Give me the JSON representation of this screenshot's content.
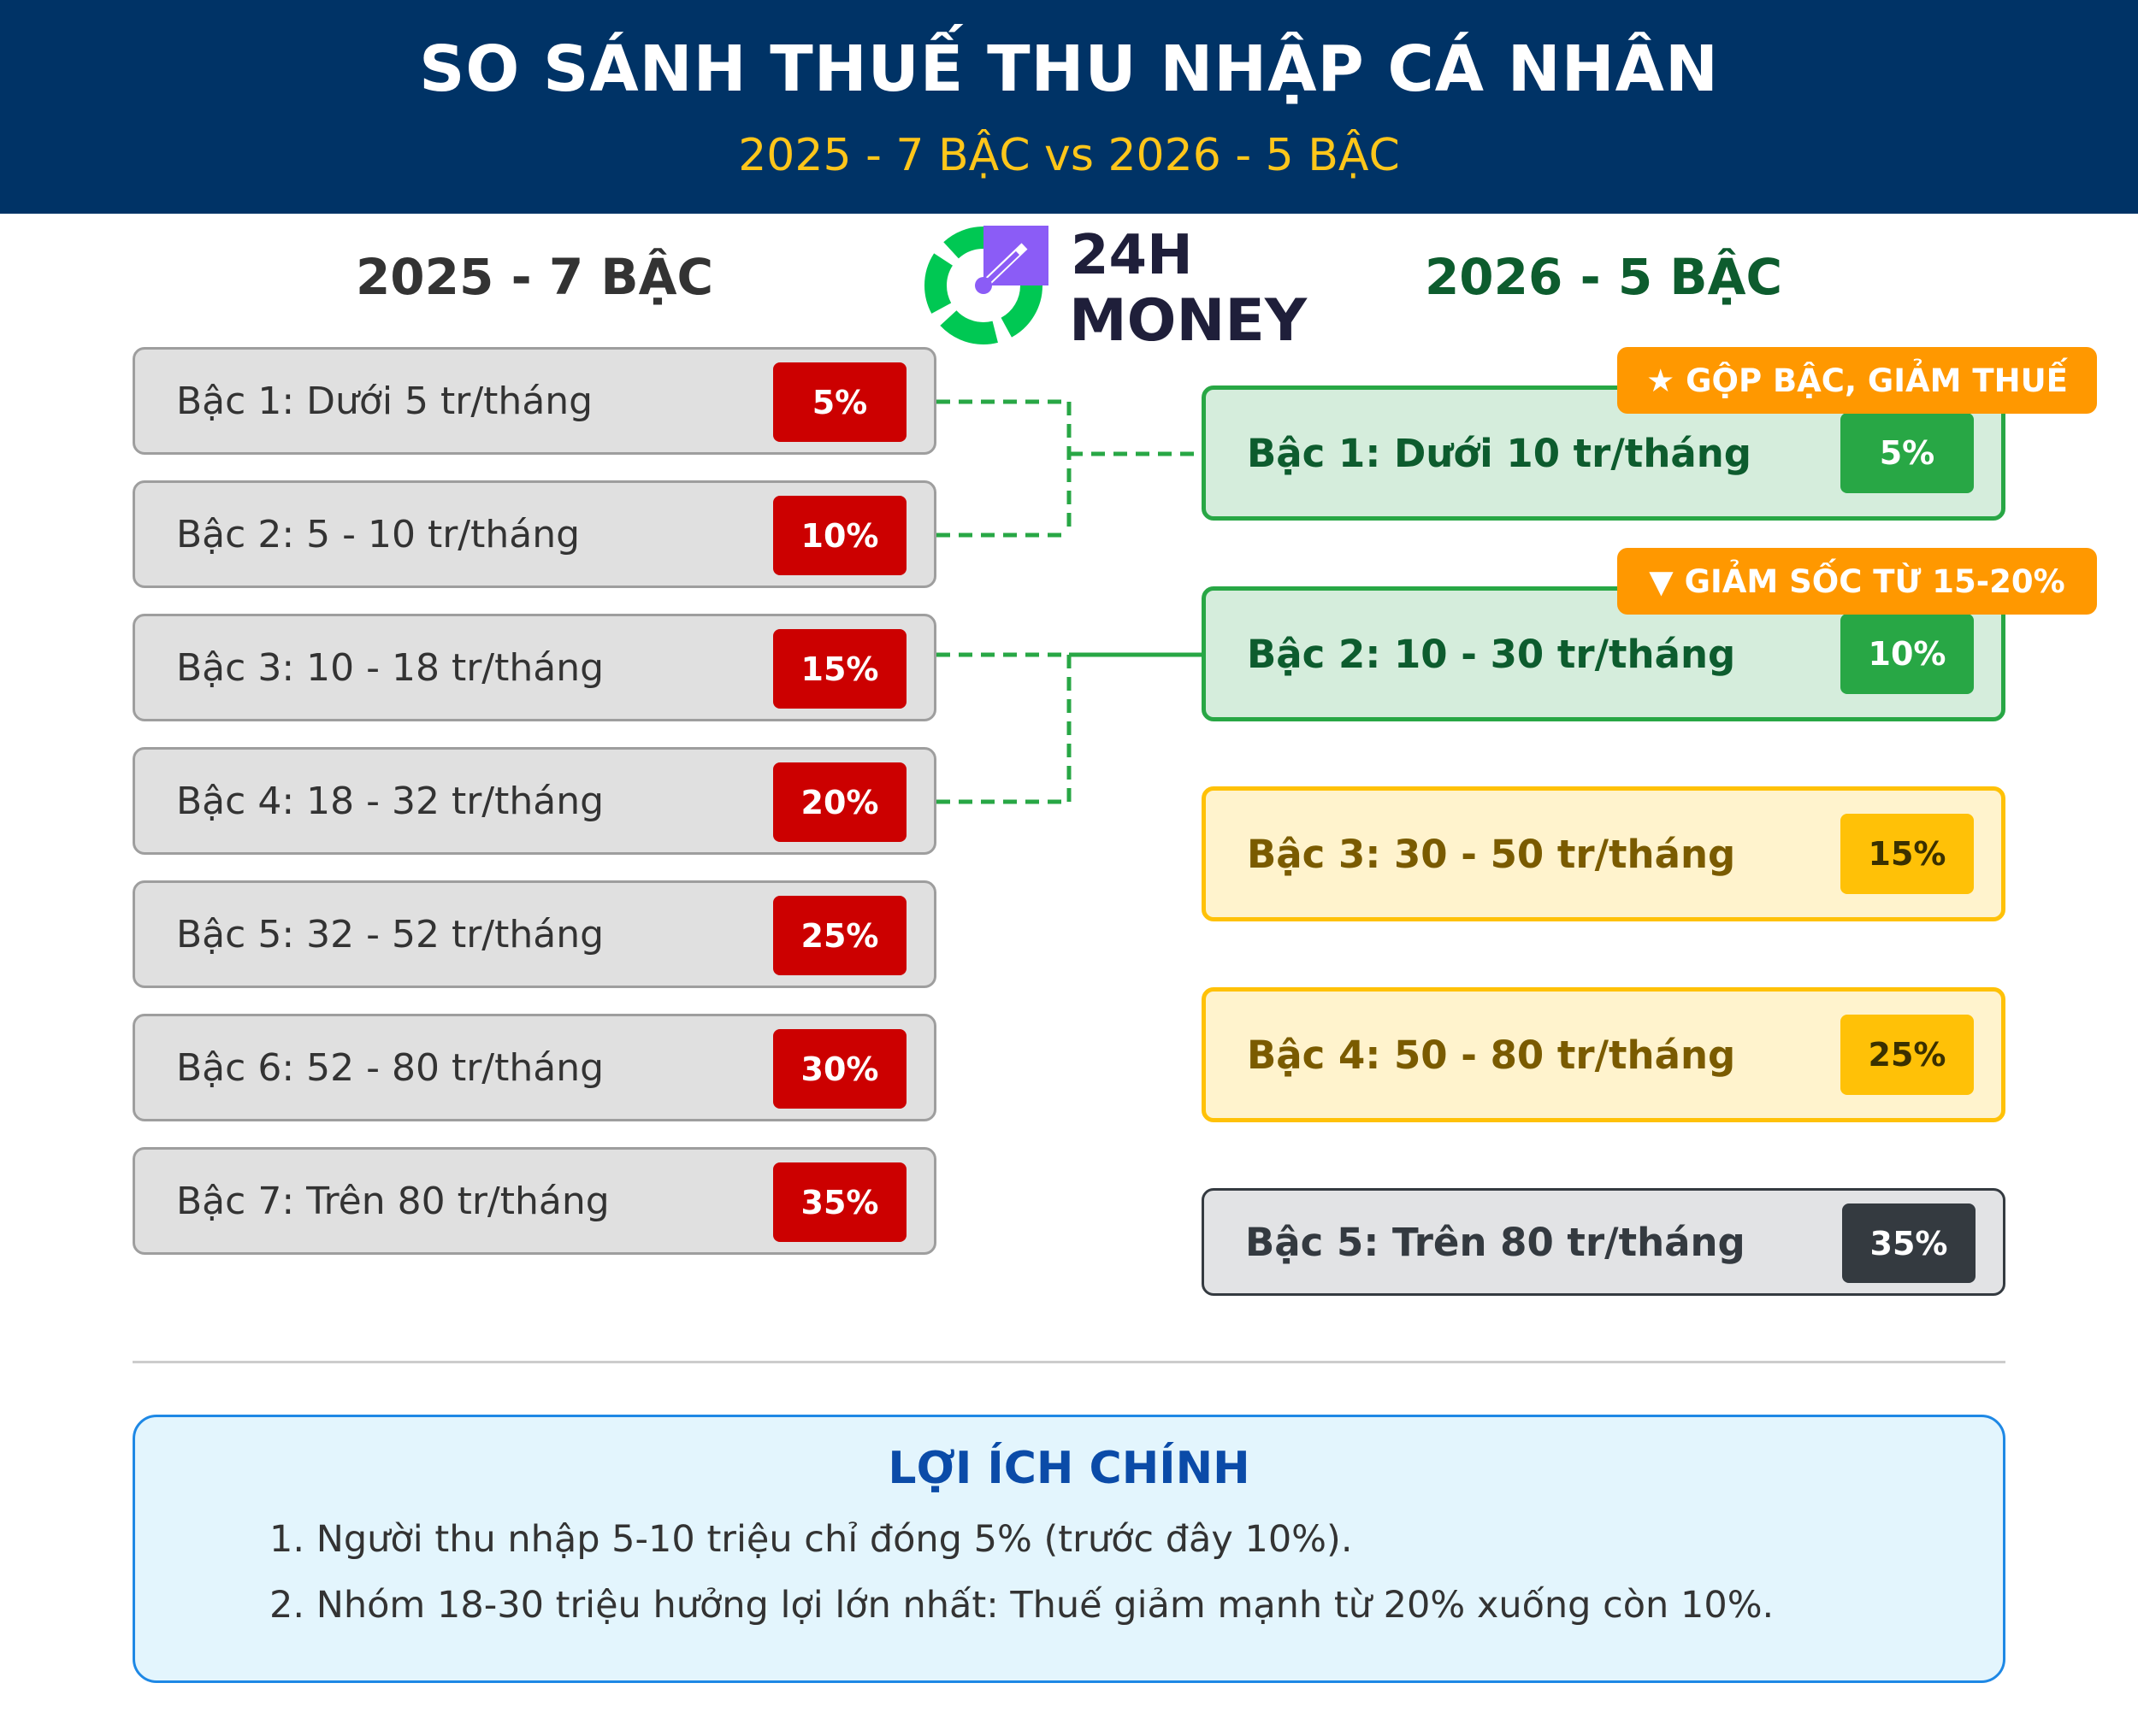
{
  "header": {
    "title": "SO SÁNH THUẾ THU NHẬP CÁ NHÂN",
    "subtitle": "2025 - 7 BẬC vs 2026 - 5 BẬC"
  },
  "logo": {
    "line1": "24H",
    "line2": "MONEY"
  },
  "left_column": {
    "title": "2025 - 7 BẬC",
    "items": [
      {
        "label": "Bậc 1: Dưới 5 tr/tháng",
        "rate": "5%"
      },
      {
        "label": "Bậc 2: 5 - 10 tr/tháng",
        "rate": "10%"
      },
      {
        "label": "Bậc 3: 10 - 18 tr/tháng",
        "rate": "15%"
      },
      {
        "label": "Bậc 4: 18 - 32 tr/tháng",
        "rate": "20%"
      },
      {
        "label": "Bậc 5: 32 - 52 tr/tháng",
        "rate": "25%"
      },
      {
        "label": "Bậc 6: 52 - 80 tr/tháng",
        "rate": "30%"
      },
      {
        "label": "Bậc 7: Trên 80 tr/tháng",
        "rate": "35%"
      }
    ]
  },
  "right_column": {
    "title": "2026 - 5 BẬC",
    "items": [
      {
        "label": "Bậc 1: Dưới 10 tr/tháng",
        "rate": "5%"
      },
      {
        "label": "Bậc 2: 10 - 30 tr/tháng",
        "rate": "10%"
      },
      {
        "label": "Bậc 3: 30 - 50 tr/tháng",
        "rate": "15%"
      },
      {
        "label": "Bậc 4: 50 - 80 tr/tháng",
        "rate": "25%"
      },
      {
        "label": "Bậc 5: Trên 80 tr/tháng",
        "rate": "35%"
      }
    ]
  },
  "tags": {
    "merge": "★ GỘP BẬC, GIẢM THUẾ",
    "shock": "▼ GIẢM SỐC TỪ 15-20%"
  },
  "benefits": {
    "title": "LỢI ÍCH CHÍNH",
    "items": [
      "1. Người thu nhập 5-10 triệu chỉ đóng 5% (trước đây 10%).",
      "2. Nhóm 18-30 triệu hưởng lợi lớn nhất: Thuế giảm mạnh từ 20% xuống còn 10%."
    ]
  },
  "colors": {
    "header_bg": "#003366",
    "old_rate": "#CC0000",
    "new_green": "#28A745",
    "new_yellow": "#FFC107",
    "new_gray": "#343A40",
    "tag": "#FF9800",
    "benefit_border": "#1E88E5"
  }
}
